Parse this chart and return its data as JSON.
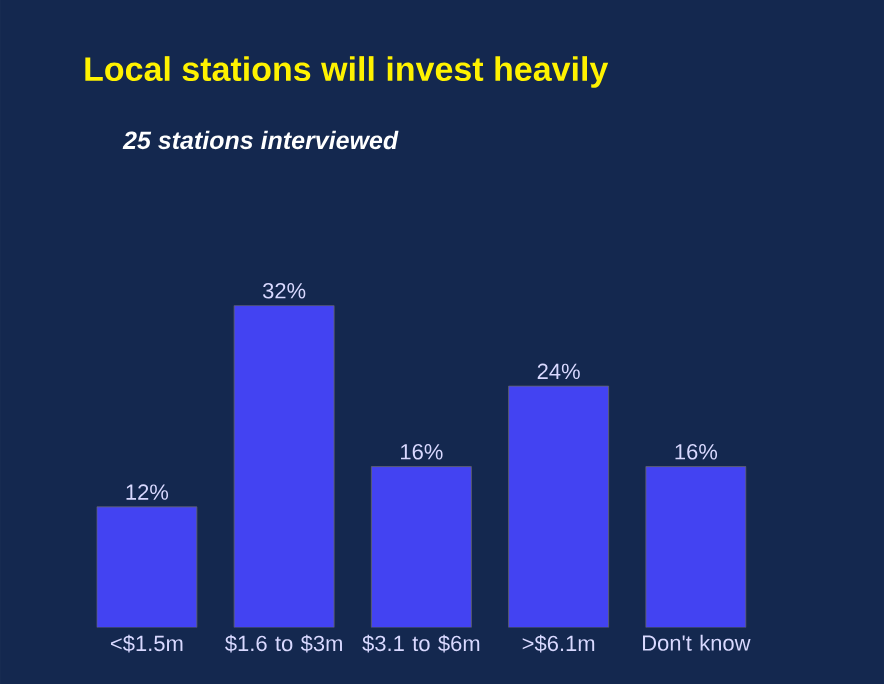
{
  "chart_data": {
    "type": "bar",
    "title": "Local stations will invest heavily",
    "subtitle": "25 stations interviewed",
    "categories": [
      "<$1.5m",
      "$1.6 to $3m",
      "$3.1 to $6m",
      ">$6.1m",
      "Don't know"
    ],
    "values": [
      12,
      32,
      16,
      24,
      16
    ],
    "value_labels": [
      "12%",
      "32%",
      "16%",
      "24%",
      "16%"
    ],
    "color": "#4343f2"
  }
}
